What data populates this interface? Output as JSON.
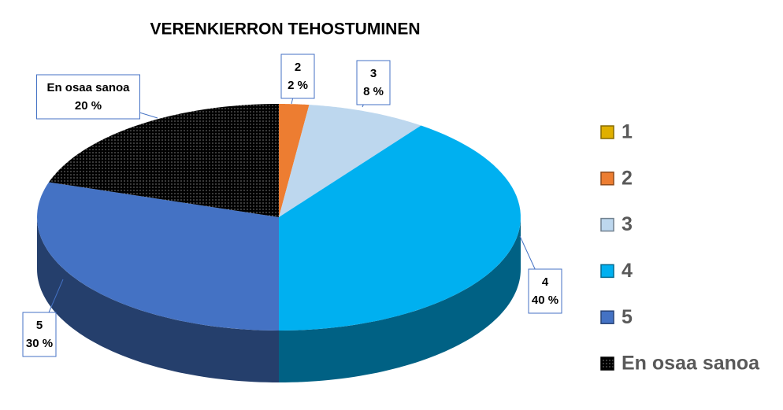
{
  "chart_data": {
    "type": "pie",
    "title": "VERENKIERRON TEHOSTUMINEN",
    "categories": [
      "1",
      "2",
      "3",
      "4",
      "5",
      "En osaa sanoa"
    ],
    "values": [
      0,
      2,
      8,
      40,
      30,
      20
    ],
    "value_labels": [
      null,
      "2 %",
      "8 %",
      "40 %",
      "30 %",
      "20 %"
    ],
    "colors": [
      "#e0b000",
      "#ed7d31",
      "#bdd7ee",
      "#00b0f0",
      "#4472c4",
      "#000000"
    ],
    "patterns": [
      null,
      null,
      null,
      null,
      null,
      "dots"
    ],
    "legend": "right"
  }
}
